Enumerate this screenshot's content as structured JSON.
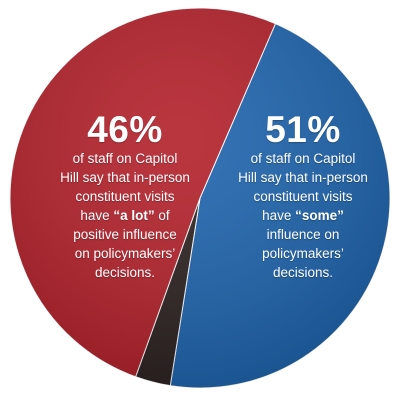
{
  "chart_data": {
    "type": "pie",
    "slices": [
      {
        "label": "a lot",
        "value": 46,
        "color": "#1d63ad",
        "text": {
          "pct": "46%",
          "line1": "of staff on Capitol",
          "line2": "Hill say that in-person",
          "line3": "constituent visits",
          "line4_pre": "have ",
          "line4_em": "“a lot”",
          "line4_post": " of",
          "line5": "positive influence",
          "line6": "on policymakers’",
          "line7": "decisions."
        }
      },
      {
        "label": "some",
        "value": 51,
        "color": "#b3202a",
        "text": {
          "pct": "51%",
          "line1": "of staff on Capitol",
          "line2": "Hill say that in-person",
          "line3": "constituent visits",
          "line4_pre": "have ",
          "line4_em": "“some”",
          "line4_post": "",
          "line5": "influence on",
          "line6": "policymakers’",
          "line7": "decisions."
        }
      },
      {
        "label": "",
        "value": 3,
        "color": "#2b2020"
      }
    ]
  }
}
